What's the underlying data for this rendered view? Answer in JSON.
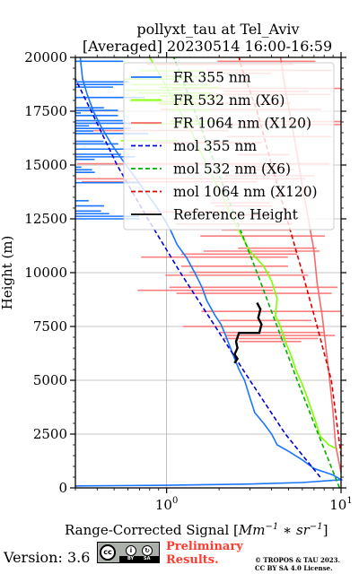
{
  "chart_data": {
    "type": "line",
    "title": "pollyxt_tau at Tel_Aviv",
    "subtitle": "[Averaged] 20230514 16:00-16:59",
    "xlabel_text": "Range-Corrected Signal [",
    "xlabel_units": "Mm",
    "xlabel_exp1": "−1",
    "xlabel_mid": " ∗ ",
    "xlabel_units2": "sr",
    "xlabel_exp2": "−1",
    "xlabel_close": "]",
    "ylabel": "Height (m)",
    "x_scale": "log",
    "xlim": [
      0.3,
      10
    ],
    "ylim": [
      0,
      20000
    ],
    "x_ticks": [
      {
        "value": 1,
        "base": "10",
        "exp": "0"
      },
      {
        "value": 10,
        "base": "10",
        "exp": "1"
      }
    ],
    "y_ticks": [
      {
        "value": 0,
        "label": "0"
      },
      {
        "value": 2500,
        "label": "2500"
      },
      {
        "value": 5000,
        "label": "5000"
      },
      {
        "value": 7500,
        "label": "7500"
      },
      {
        "value": 10000,
        "label": "10000"
      },
      {
        "value": 12500,
        "label": "12500"
      },
      {
        "value": 15000,
        "label": "15000"
      },
      {
        "value": 17500,
        "label": "17500"
      },
      {
        "value": 20000,
        "label": "20000"
      }
    ],
    "grid": true,
    "legend_position": "top-right",
    "series": [
      {
        "name": "FR 355 nm",
        "color": "#1a75ff",
        "style": "solid",
        "points": [
          [
            0.3,
            90
          ],
          [
            1,
            120
          ],
          [
            3,
            180
          ],
          [
            6,
            250
          ],
          [
            9,
            350
          ],
          [
            10,
            380
          ],
          [
            9,
            600
          ],
          [
            7,
            900
          ],
          [
            6,
            1300
          ],
          [
            5,
            1700
          ],
          [
            4.3,
            2000
          ],
          [
            4,
            2500
          ],
          [
            3.6,
            3000
          ],
          [
            3.2,
            3500
          ],
          [
            3.0,
            4200
          ],
          [
            2.8,
            5000
          ],
          [
            2.6,
            5500
          ],
          [
            2.4,
            6200
          ],
          [
            2.2,
            7000
          ],
          [
            2.05,
            7600
          ],
          [
            1.9,
            8000
          ],
          [
            1.7,
            8700
          ],
          [
            1.6,
            9300
          ],
          [
            1.45,
            10000
          ],
          [
            1.3,
            10700
          ],
          [
            1.15,
            11300
          ],
          [
            1.05,
            12000
          ],
          [
            0.95,
            12600
          ],
          [
            0.85,
            13200
          ],
          [
            0.75,
            13800
          ],
          [
            0.65,
            14500
          ],
          [
            0.55,
            15300
          ],
          [
            0.48,
            16000
          ],
          [
            0.42,
            16800
          ],
          [
            0.38,
            17500
          ],
          [
            0.35,
            18300
          ],
          [
            0.33,
            19000
          ],
          [
            0.32,
            20000
          ]
        ]
      },
      {
        "name": "FR 532 nm (X6)",
        "color": "#7fff00",
        "style": "solid",
        "points": [
          [
            9.5,
            1800
          ],
          [
            8.5,
            2000
          ],
          [
            7.6,
            2400
          ],
          [
            7.2,
            3000
          ],
          [
            6.8,
            3600
          ],
          [
            6.4,
            4200
          ],
          [
            6,
            4800
          ],
          [
            5.5,
            5500
          ],
          [
            5.2,
            6100
          ],
          [
            4.8,
            6800
          ],
          [
            4.5,
            7500
          ],
          [
            4.2,
            8000
          ],
          [
            4.3,
            8800
          ],
          [
            4.0,
            9600
          ],
          [
            3.6,
            10300
          ],
          [
            3.0,
            11000
          ],
          [
            2.7,
            11700
          ],
          [
            2.4,
            12500
          ],
          [
            2.1,
            13500
          ],
          [
            1.7,
            15000
          ],
          [
            1.4,
            16500
          ],
          [
            1.1,
            18000
          ],
          [
            0.9,
            19300
          ],
          [
            0.8,
            20000
          ]
        ]
      },
      {
        "name": "FR 1064 nm (X120)",
        "color": "#f86a6a",
        "style": "solid",
        "points": [
          [
            10,
            700
          ],
          [
            9.3,
            2000
          ],
          [
            9,
            3500
          ],
          [
            8.6,
            5000
          ],
          [
            8.2,
            6500
          ],
          [
            7.8,
            8000
          ],
          [
            7.3,
            9500
          ],
          [
            7,
            11000
          ],
          [
            6.5,
            12500
          ],
          [
            6,
            14000
          ],
          [
            5.6,
            15500
          ],
          [
            5.2,
            17000
          ],
          [
            4.8,
            18500
          ],
          [
            4.5,
            20000
          ]
        ]
      },
      {
        "name": "mol 355 nm",
        "color": "#0000dd",
        "style": "dashed",
        "points": [
          [
            7.6,
            500
          ],
          [
            4.8,
            2500
          ],
          [
            3.0,
            5000
          ],
          [
            1.9,
            7500
          ],
          [
            1.2,
            10000
          ],
          [
            0.78,
            12500
          ],
          [
            0.52,
            15000
          ],
          [
            0.37,
            17500
          ],
          [
            0.3,
            19000
          ]
        ]
      },
      {
        "name": "mol 532 nm (X6)",
        "color": "#00b000",
        "style": "dashed",
        "points": [
          [
            9.8,
            0
          ],
          [
            7.4,
            2500
          ],
          [
            5.6,
            5000
          ],
          [
            4.3,
            7500
          ],
          [
            3.3,
            10000
          ],
          [
            2.5,
            12500
          ],
          [
            1.9,
            15000
          ],
          [
            1.45,
            17500
          ],
          [
            1.1,
            20000
          ]
        ]
      },
      {
        "name": "mol 1064 nm (X120)",
        "color": "#dd0000",
        "style": "dashed",
        "points": [
          [
            10,
            1500
          ],
          [
            8.8,
            5000
          ],
          [
            7.3,
            7500
          ],
          [
            6.0,
            10000
          ],
          [
            4.9,
            12500
          ],
          [
            4.0,
            15000
          ],
          [
            3.3,
            17500
          ],
          [
            2.7,
            19500
          ],
          [
            2.6,
            20000
          ]
        ]
      },
      {
        "name": "Reference Height",
        "color": "#000000",
        "style": "solid",
        "points": [
          [
            2.45,
            5800
          ],
          [
            2.55,
            6000
          ],
          [
            2.45,
            6200
          ],
          [
            2.55,
            6500
          ],
          [
            2.5,
            6800
          ],
          [
            2.6,
            7200
          ],
          [
            3.4,
            7200
          ],
          [
            3.5,
            7600
          ],
          [
            3.35,
            7900
          ],
          [
            3.45,
            8300
          ],
          [
            3.3,
            8600
          ]
        ]
      }
    ]
  },
  "footer": {
    "version": "Version: 3.6",
    "preliminary_line1": "Preliminary",
    "preliminary_line2": "Results.",
    "copyright_line1": "© TROPOS & TAU 2023.",
    "copyright_line2": "CC BY SA 4.0 License.",
    "license_badge": {
      "cc": "cc",
      "by": "BY",
      "sa": "SA"
    }
  }
}
